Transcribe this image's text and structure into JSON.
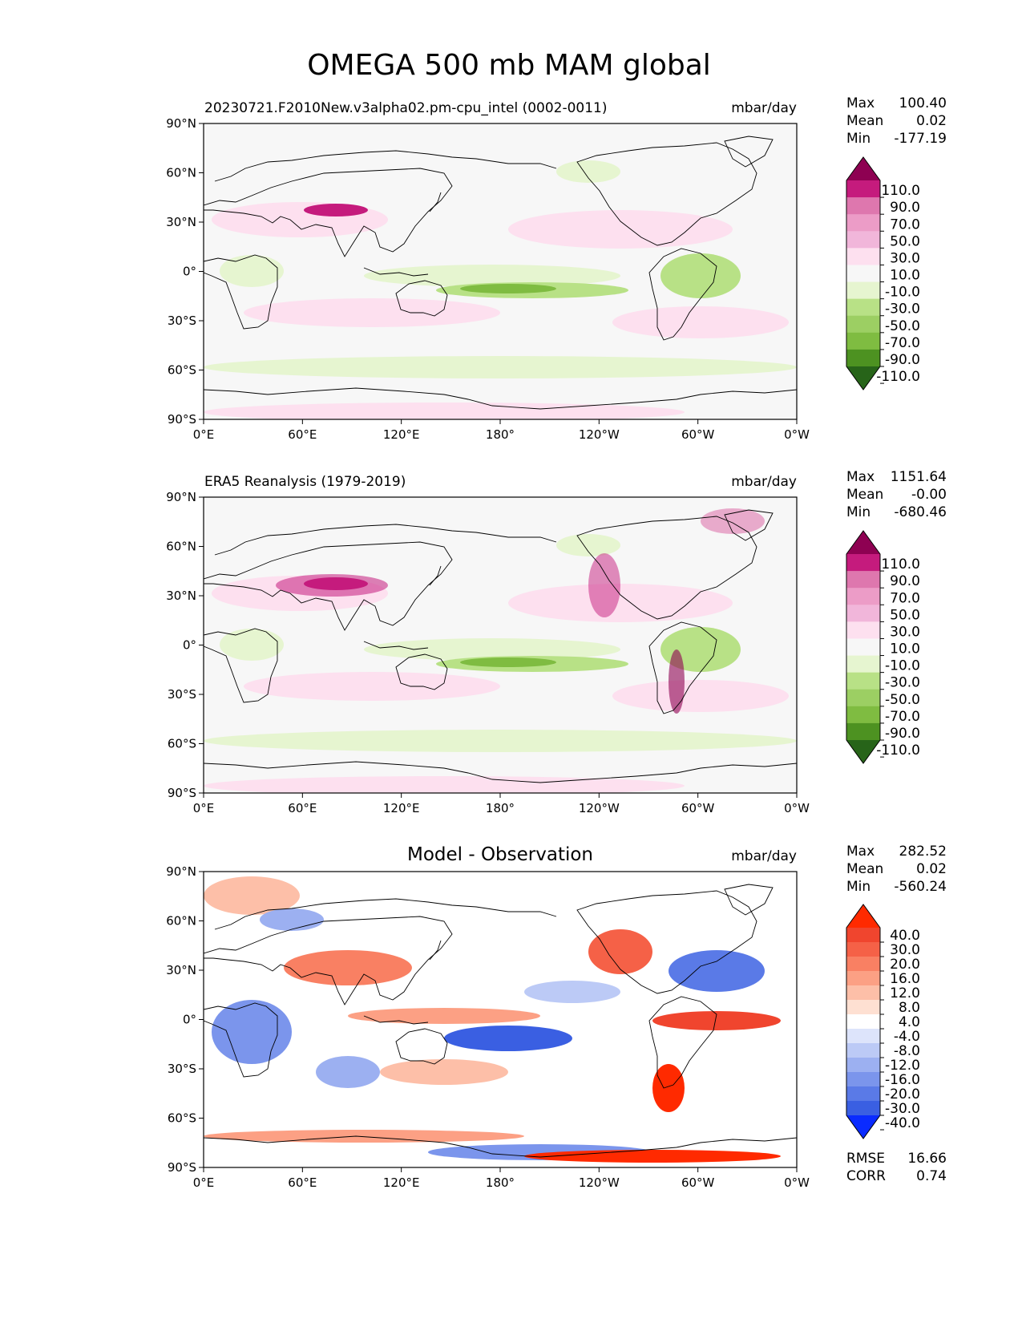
{
  "chart_data": {
    "type": "heatmap",
    "title": "OMEGA 500 mb MAM global",
    "x_ticks": [
      "0°E",
      "60°E",
      "120°E",
      "180°",
      "120°W",
      "60°W",
      "0°W"
    ],
    "y_ticks": [
      "90°N",
      "60°N",
      "30°N",
      "0°",
      "30°S",
      "60°S",
      "90°S"
    ],
    "panels": [
      {
        "id": "model",
        "title_left": "20230721.F2010New.v3alpha02.pm-cpu_intel (0002-0011)",
        "title_center": "",
        "units": "mbar/day",
        "stats": {
          "max_label": "Max",
          "max": "100.40",
          "mean_label": "Mean",
          "mean": "0.02",
          "min_label": "Min",
          "min": "-177.19"
        },
        "colorbar": {
          "levels": [
            "110.0",
            "90.0",
            "70.0",
            "50.0",
            "30.0",
            "10.0",
            "-10.0",
            "-30.0",
            "-50.0",
            "-70.0",
            "-90.0",
            "-110.0"
          ],
          "colors": [
            "#8e0152",
            "#c51b7d",
            "#de77ae",
            "#ec9cc7",
            "#f1b6da",
            "#fde0ef",
            "#f7f7f7",
            "#e6f5d0",
            "#b8e186",
            "#9ccf63",
            "#7fbc41",
            "#4d9221",
            "#276419"
          ]
        }
      },
      {
        "id": "obs",
        "title_left": "ERA5 Reanalysis (1979-2019)",
        "title_center": "",
        "units": "mbar/day",
        "stats": {
          "max_label": "Max",
          "max": "1151.64",
          "mean_label": "Mean",
          "mean": "-0.00",
          "min_label": "Min",
          "min": "-680.46"
        },
        "colorbar": {
          "levels": [
            "110.0",
            "90.0",
            "70.0",
            "50.0",
            "30.0",
            "10.0",
            "-10.0",
            "-30.0",
            "-50.0",
            "-70.0",
            "-90.0",
            "-110.0"
          ],
          "colors": [
            "#8e0152",
            "#c51b7d",
            "#de77ae",
            "#ec9cc7",
            "#f1b6da",
            "#fde0ef",
            "#f7f7f7",
            "#e6f5d0",
            "#b8e186",
            "#9ccf63",
            "#7fbc41",
            "#4d9221",
            "#276419"
          ]
        }
      },
      {
        "id": "diff",
        "title_left": "",
        "title_center": "Model - Observation",
        "units": "mbar/day",
        "stats": {
          "max_label": "Max",
          "max": "282.52",
          "mean_label": "Mean",
          "mean": "0.02",
          "min_label": "Min",
          "min": "-560.24"
        },
        "metrics": {
          "rmse_label": "RMSE",
          "rmse": "16.66",
          "corr_label": "CORR",
          "corr": "0.74"
        },
        "colorbar": {
          "levels": [
            "40.0",
            "30.0",
            "20.0",
            "16.0",
            "12.0",
            "8.0",
            "4.0",
            "-4.0",
            "-8.0",
            "-12.0",
            "-16.0",
            "-20.0",
            "-30.0",
            "-40.0"
          ],
          "colors": [
            "#ff2a00",
            "#f0452e",
            "#f56147",
            "#f98063",
            "#fca084",
            "#fdbfa8",
            "#fee0d2",
            "#ffffff",
            "#dde4fb",
            "#bccaf6",
            "#9cb0f1",
            "#7b95ec",
            "#5a7ae7",
            "#3a5fe2",
            "#0a2bff"
          ]
        }
      }
    ]
  }
}
